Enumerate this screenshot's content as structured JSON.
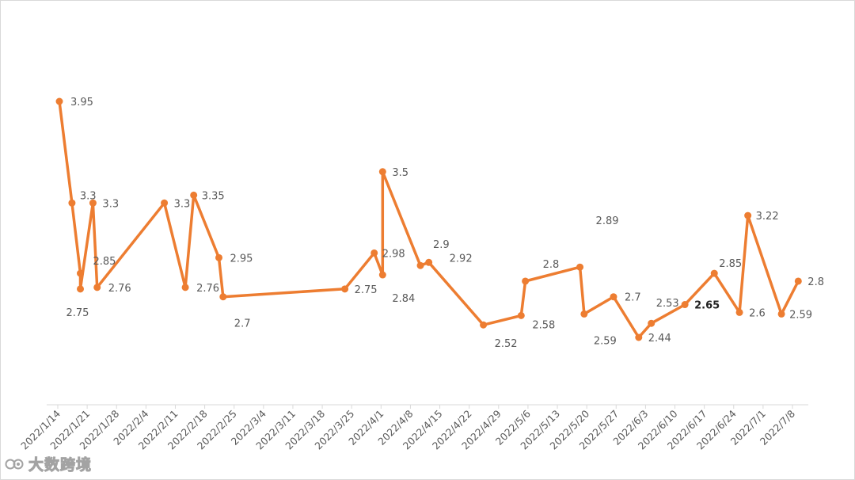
{
  "chart_data": {
    "type": "line",
    "title": "",
    "xlabel": "",
    "ylabel": "",
    "x_ticks": [
      "2022/1/14",
      "2022/1/21",
      "2022/1/28",
      "2022/2/4",
      "2022/2/11",
      "2022/2/18",
      "2022/2/25",
      "2022/3/4",
      "2022/3/11",
      "2022/3/18",
      "2022/3/25",
      "2022/4/1",
      "2022/4/8",
      "2022/4/15",
      "2022/4/22",
      "2022/4/29",
      "2022/5/6",
      "2022/5/13",
      "2022/5/20",
      "2022/5/27",
      "2022/6/3",
      "2022/6/10",
      "2022/6/17",
      "2022/6/24",
      "2022/7/1",
      "2022/7/8"
    ],
    "ylim": [
      1.5,
      4.5
    ],
    "grid": false,
    "series": [
      {
        "color": "#ED7D31",
        "points": [
          {
            "x": "2022/1/14",
            "y": 3.95
          },
          {
            "x": "2022/1/17",
            "y": 3.3
          },
          {
            "x": "2022/1/19",
            "y": 2.85
          },
          {
            "x": "2022/1/19",
            "y": 2.75
          },
          {
            "x": "2022/1/22",
            "y": 3.3
          },
          {
            "x": "2022/1/23",
            "y": 2.76
          },
          {
            "x": "2022/2/8",
            "y": 3.3
          },
          {
            "x": "2022/2/13",
            "y": 2.76
          },
          {
            "x": "2022/2/15",
            "y": 3.35
          },
          {
            "x": "2022/2/21",
            "y": 2.95
          },
          {
            "x": "2022/2/22",
            "y": 2.7
          },
          {
            "x": "2022/3/23",
            "y": 2.75
          },
          {
            "x": "2022/3/30",
            "y": 2.98
          },
          {
            "x": "2022/4/1",
            "y": 2.84
          },
          {
            "x": "2022/4/1",
            "y": 3.5
          },
          {
            "x": "2022/4/10",
            "y": 2.9
          },
          {
            "x": "2022/4/12",
            "y": 2.92
          },
          {
            "x": "2022/4/25",
            "y": 2.52
          },
          {
            "x": "2022/5/4",
            "y": 2.58
          },
          {
            "x": "2022/5/5",
            "y": 2.8
          },
          {
            "x": "2022/5/18",
            "y": 2.89
          },
          {
            "x": "2022/5/19",
            "y": 2.59
          },
          {
            "x": "2022/5/26",
            "y": 2.7
          },
          {
            "x": "2022/6/1",
            "y": 2.44
          },
          {
            "x": "2022/6/4",
            "y": 2.53
          },
          {
            "x": "2022/6/12",
            "y": 2.65
          },
          {
            "x": "2022/6/19",
            "y": 2.85
          },
          {
            "x": "2022/6/25",
            "y": 2.6
          },
          {
            "x": "2022/6/27",
            "y": 3.22
          },
          {
            "x": "2022/7/5",
            "y": 2.59
          },
          {
            "x": "2022/7/9",
            "y": 2.8
          }
        ],
        "labels": [
          "3.95",
          "3.3",
          "2.85",
          "2.75",
          "3.3",
          "2.76",
          "3.3",
          "2.76",
          "3.35",
          "2.95",
          "2.7",
          "2.75",
          "2.98",
          "2.84",
          "3.5",
          "2.9",
          "2.92",
          "2.52",
          "2.58",
          "2.8",
          "2.89",
          "2.59",
          "2.7",
          "2.44",
          "2.53",
          "2.65",
          "2.85",
          "2.6",
          "3.22",
          "2.59",
          "2.8"
        ]
      }
    ]
  },
  "watermark": {
    "text": "大数跨境",
    "icon": "brand-logo-icon"
  }
}
